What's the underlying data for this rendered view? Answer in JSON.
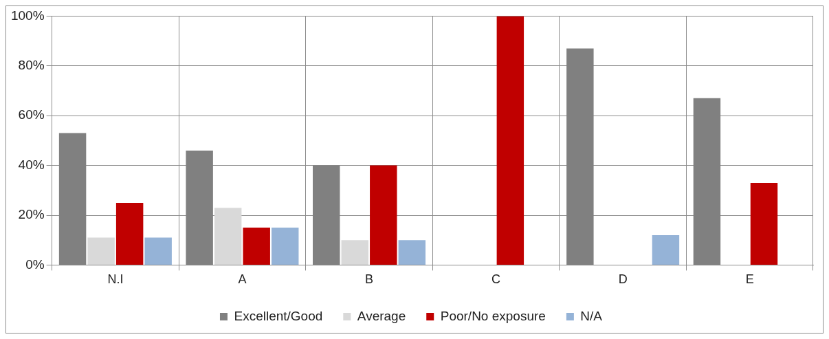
{
  "chart_data": {
    "type": "bar",
    "categories": [
      "N.I",
      "A",
      "B",
      "C",
      "D",
      "E"
    ],
    "series": [
      {
        "name": "Excellent/Good",
        "color": "#808080",
        "values": [
          53,
          46,
          40,
          0,
          87,
          67
        ]
      },
      {
        "name": "Average",
        "color": "#d9d9d9",
        "values": [
          11,
          23,
          10,
          0,
          0,
          0
        ]
      },
      {
        "name": "Poor/No exposure",
        "color": "#c00000",
        "values": [
          25,
          15,
          40,
          100,
          0,
          33
        ]
      },
      {
        "name": "N/A",
        "color": "#95b3d7",
        "values": [
          11,
          15,
          10,
          0,
          12,
          0
        ]
      }
    ],
    "ylim": [
      0,
      100
    ],
    "yticks": [
      {
        "value": 0,
        "label": "0%"
      },
      {
        "value": 20,
        "label": "20%"
      },
      {
        "value": 40,
        "label": "40%"
      },
      {
        "value": 60,
        "label": "60%"
      },
      {
        "value": 80,
        "label": "80%"
      },
      {
        "value": 100,
        "label": "100%"
      }
    ],
    "grid": true,
    "legend": "bottom"
  }
}
